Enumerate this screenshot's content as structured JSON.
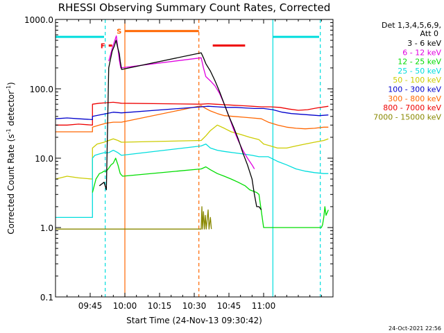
{
  "chart_data": {
    "type": "line",
    "title": "RHESSI Observing Summary Count Rates, Corrected",
    "xlabel": "Start Time (24-Nov-13 09:30:42)",
    "ylabel_main": "Corrected Count Rate (s",
    "ylabel_sup1": "-1",
    "ylabel_mid": " detector",
    "ylabel_sup2": "-1",
    "ylabel_end": ")",
    "timestamp": "24-Oct-2021 22:56",
    "x_range_minutes": [
      0,
      120
    ],
    "y_range": [
      0.1,
      1000
    ],
    "y_scale": "log",
    "x_ticks": [
      {
        "t": 15,
        "label": "09:45"
      },
      {
        "t": 30,
        "label": "10:00"
      },
      {
        "t": 45,
        "label": "10:15"
      },
      {
        "t": 60,
        "label": "10:30"
      },
      {
        "t": 75,
        "label": "10:45"
      },
      {
        "t": 90,
        "label": "11:00"
      }
    ],
    "y_ticks": [
      {
        "v": 0.1,
        "label": "0.1"
      },
      {
        "v": 1,
        "label": "1.0"
      },
      {
        "v": 10,
        "label": "10.0"
      },
      {
        "v": 100,
        "label": "100.0"
      },
      {
        "v": 1000,
        "label": "1000.0"
      }
    ],
    "legend_header1": "Det 1,3,4,5,6,9,",
    "legend_header2": "Att 0",
    "legend_placement": "right",
    "series": [
      {
        "name": "3 - 6 keV",
        "color": "#000000",
        "points": [
          [
            19,
            4
          ],
          [
            21,
            4.5
          ],
          [
            22,
            3.5
          ],
          [
            22.2,
            8
          ],
          [
            23,
            200
          ],
          [
            24.5,
            350
          ],
          [
            25.5,
            420
          ],
          [
            26.2,
            500
          ],
          [
            27,
            380
          ],
          [
            27.6,
            320
          ],
          [
            28,
            250
          ],
          [
            28.6,
            190
          ],
          [
            63,
            330
          ],
          [
            64,
            280
          ],
          [
            65,
            230
          ],
          [
            67,
            180
          ],
          [
            69,
            130
          ],
          [
            71,
            90
          ],
          [
            73,
            60
          ],
          [
            75,
            40
          ],
          [
            77,
            28
          ],
          [
            79,
            19
          ],
          [
            81,
            12
          ],
          [
            83,
            8
          ],
          [
            85,
            5
          ],
          [
            86,
            3
          ],
          [
            87,
            2
          ],
          [
            88,
            2
          ],
          [
            89,
            1.8
          ]
        ]
      },
      {
        "name": "6 - 12 keV",
        "color": "#e000e0",
        "points": [
          [
            23,
            250
          ],
          [
            24.5,
            380
          ],
          [
            25.5,
            480
          ],
          [
            26.3,
            580
          ],
          [
            27,
            380
          ],
          [
            27.6,
            260
          ],
          [
            28.2,
            200
          ],
          [
            63,
            280
          ],
          [
            64,
            200
          ],
          [
            65,
            150
          ],
          [
            67,
            130
          ],
          [
            69,
            110
          ],
          [
            71,
            85
          ],
          [
            73,
            60
          ],
          [
            75,
            40
          ],
          [
            77,
            26
          ],
          [
            79,
            18
          ],
          [
            81,
            13
          ],
          [
            83,
            10
          ],
          [
            85,
            8
          ],
          [
            86,
            7
          ]
        ]
      },
      {
        "name": "12 - 25 keV",
        "color": "#00dd00",
        "points": [
          [
            16,
            3.2
          ],
          [
            17.5,
            5
          ],
          [
            19,
            6
          ],
          [
            20,
            6.2
          ],
          [
            21,
            6.5
          ],
          [
            22,
            6.5
          ],
          [
            22.8,
            7
          ],
          [
            24,
            8
          ],
          [
            25,
            8.5
          ],
          [
            26,
            10
          ],
          [
            27,
            8
          ],
          [
            28,
            6
          ],
          [
            29,
            5.5
          ],
          [
            63,
            7
          ],
          [
            65,
            7.5
          ],
          [
            67,
            6.8
          ],
          [
            70,
            6
          ],
          [
            73,
            5.5
          ],
          [
            76,
            5
          ],
          [
            79,
            4.5
          ],
          [
            82,
            4
          ],
          [
            84,
            3.5
          ],
          [
            87,
            3.2
          ],
          [
            88,
            3
          ],
          [
            90,
            1
          ],
          [
            110,
            1
          ],
          [
            115,
            1
          ],
          [
            115.5,
            1.1
          ],
          [
            116,
            1.4
          ],
          [
            116.5,
            2
          ],
          [
            117,
            1.5
          ],
          [
            118,
            1.8
          ]
        ]
      },
      {
        "name": "25 - 50 keV",
        "color": "#00dddd",
        "points": [
          [
            0,
            1.4
          ],
          [
            16,
            1.4
          ],
          [
            16,
            10
          ],
          [
            17,
            11
          ],
          [
            19,
            11.5
          ],
          [
            21,
            12
          ],
          [
            23,
            12
          ],
          [
            25,
            13
          ],
          [
            27,
            12
          ],
          [
            28.5,
            11
          ],
          [
            63,
            15
          ],
          [
            65,
            16
          ],
          [
            67,
            14
          ],
          [
            70,
            13
          ],
          [
            73,
            12.5
          ],
          [
            77,
            12
          ],
          [
            81,
            11.5
          ],
          [
            85,
            11
          ],
          [
            88,
            10.5
          ],
          [
            92,
            10.5
          ],
          [
            96,
            9
          ],
          [
            100,
            8
          ],
          [
            104,
            7
          ],
          [
            108,
            6.5
          ],
          [
            112,
            6.2
          ],
          [
            116,
            6
          ],
          [
            118,
            6
          ]
        ]
      },
      {
        "name": "50 - 100 keV",
        "color": "#cccc00",
        "points": [
          [
            0,
            5
          ],
          [
            5,
            5.5
          ],
          [
            10,
            5.2
          ],
          [
            16,
            5
          ],
          [
            16,
            14
          ],
          [
            18,
            16
          ],
          [
            21,
            17
          ],
          [
            23,
            18
          ],
          [
            25,
            19
          ],
          [
            27,
            18
          ],
          [
            28.5,
            17
          ],
          [
            63,
            18
          ],
          [
            65,
            21
          ],
          [
            67,
            25
          ],
          [
            70,
            30
          ],
          [
            73,
            27
          ],
          [
            76,
            24
          ],
          [
            80,
            22
          ],
          [
            84,
            20
          ],
          [
            88,
            18.5
          ],
          [
            90,
            16
          ],
          [
            93,
            15
          ],
          [
            96,
            14
          ],
          [
            100,
            14
          ],
          [
            104,
            15
          ],
          [
            108,
            16
          ],
          [
            112,
            17
          ],
          [
            116,
            18
          ],
          [
            118,
            19
          ]
        ]
      },
      {
        "name": "100 - 300 keV",
        "color": "#0000cc",
        "points": [
          [
            0,
            37
          ],
          [
            5,
            38
          ],
          [
            10,
            37
          ],
          [
            16,
            36
          ],
          [
            16,
            40
          ],
          [
            19,
            42
          ],
          [
            22,
            44
          ],
          [
            25,
            46
          ],
          [
            28.5,
            45
          ],
          [
            63,
            55
          ],
          [
            66,
            56
          ],
          [
            70,
            55
          ],
          [
            74,
            54
          ],
          [
            78,
            54
          ],
          [
            82,
            53
          ],
          [
            86,
            52
          ],
          [
            90,
            52
          ],
          [
            94,
            50
          ],
          [
            98,
            46
          ],
          [
            102,
            44
          ],
          [
            106,
            43
          ],
          [
            110,
            42
          ],
          [
            114,
            41
          ],
          [
            118,
            42
          ]
        ]
      },
      {
        "name": "300 - 800 keV",
        "color": "#ff6600",
        "points": [
          [
            0,
            24
          ],
          [
            5,
            24
          ],
          [
            10,
            24
          ],
          [
            16,
            24
          ],
          [
            16,
            28
          ],
          [
            19,
            30
          ],
          [
            22,
            32
          ],
          [
            25,
            33
          ],
          [
            28.5,
            33
          ],
          [
            63,
            57
          ],
          [
            65,
            52
          ],
          [
            67,
            48
          ],
          [
            70,
            44
          ],
          [
            73,
            41
          ],
          [
            77,
            40
          ],
          [
            81,
            39
          ],
          [
            85,
            38
          ],
          [
            89,
            37
          ],
          [
            92,
            33
          ],
          [
            96,
            30
          ],
          [
            100,
            28
          ],
          [
            104,
            27
          ],
          [
            108,
            26.5
          ],
          [
            112,
            27
          ],
          [
            116,
            28
          ],
          [
            118,
            28
          ]
        ]
      },
      {
        "name": "800 - 7000 keV",
        "color": "#ee0000",
        "points": [
          [
            0,
            30
          ],
          [
            5,
            30
          ],
          [
            10,
            31
          ],
          [
            16,
            30
          ],
          [
            16,
            60
          ],
          [
            19,
            62
          ],
          [
            22,
            63
          ],
          [
            25,
            64
          ],
          [
            28.5,
            62
          ],
          [
            63,
            60
          ],
          [
            66,
            61
          ],
          [
            69,
            60
          ],
          [
            73,
            59
          ],
          [
            77,
            58
          ],
          [
            81,
            57
          ],
          [
            85,
            56
          ],
          [
            89,
            55
          ],
          [
            93,
            55
          ],
          [
            97,
            54
          ],
          [
            101,
            51
          ],
          [
            105,
            49
          ],
          [
            109,
            50
          ],
          [
            113,
            53
          ],
          [
            118,
            56
          ]
        ]
      },
      {
        "name": "7000 - 15000 keV",
        "color": "#888800",
        "points": [
          [
            0,
            0.95
          ],
          [
            16,
            0.95
          ],
          [
            63,
            0.95
          ],
          [
            63.3,
            2
          ],
          [
            63.6,
            0.95
          ],
          [
            64,
            1.7
          ],
          [
            64.4,
            0.95
          ],
          [
            64.8,
            1.5
          ],
          [
            65.2,
            0.95
          ],
          [
            66,
            1.8
          ],
          [
            66.4,
            0.95
          ],
          [
            67,
            1.4
          ],
          [
            67.4,
            0.95
          ]
        ]
      }
    ],
    "saa_bars": [
      {
        "t0": 0,
        "t1": 21,
        "v": 560,
        "color": "#00dddd"
      },
      {
        "t0": 94,
        "t1": 114,
        "v": 560,
        "color": "#00dddd"
      },
      {
        "t0": 30,
        "t1": 62,
        "v": 680,
        "color": "#ff6600"
      },
      {
        "t0": 68,
        "t1": 82,
        "v": 420,
        "color": "#ee0000"
      },
      {
        "t0": 23,
        "t1": 24.5,
        "v": 420,
        "color": "#ee0000"
      }
    ],
    "flag_labels": [
      {
        "t": 20.5,
        "v": 420,
        "label": "F",
        "color": "#ee0000"
      },
      {
        "t": 27.5,
        "v": 680,
        "label": "S",
        "color": "#ff6600"
      }
    ],
    "vlines": [
      {
        "t": 21.5,
        "color": "#00dddd",
        "dashed": true
      },
      {
        "t": 30,
        "color": "#ff6600",
        "dashed": false
      },
      {
        "t": 62,
        "color": "#ff6600",
        "dashed": true
      },
      {
        "t": 94,
        "color": "#00dddd",
        "dashed": false
      },
      {
        "t": 114.5,
        "color": "#00dddd",
        "dashed": true
      }
    ]
  }
}
